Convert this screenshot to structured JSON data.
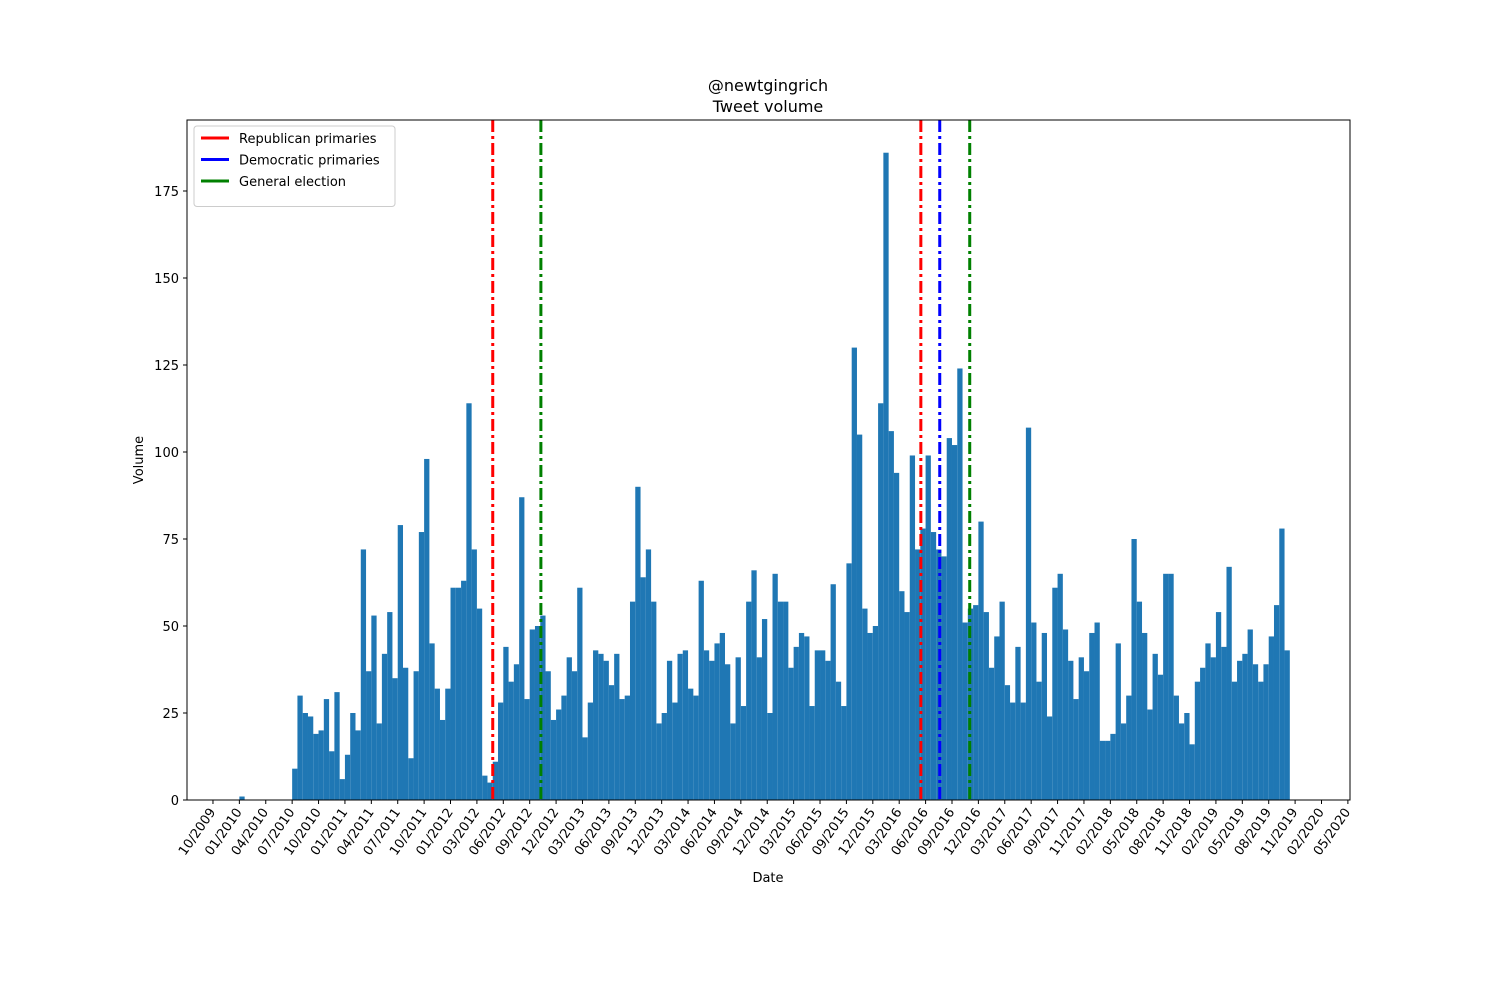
{
  "chart_data": {
    "type": "histogram",
    "title": "@newtgingrich",
    "subtitle": "Tweet volume",
    "x_label": "Date",
    "y_label": "Volume",
    "color": "#1f77b4",
    "bins": [
      2010,
      2010.05,
      2010.1,
      2010.15,
      2010.2,
      2010.25,
      2010.3,
      2010.35,
      2010.4,
      2010.45,
      2010.5,
      2010.55,
      2010.6,
      2010.65,
      2010.7,
      2010.75,
      2010.8,
      2010.85,
      2010.9,
      2010.95,
      2011,
      2011.05,
      2011.1,
      2011.15,
      2011.2,
      2011.25,
      2011.3,
      2011.35,
      2011.4,
      2011.45,
      2011.5,
      2011.55,
      2011.6,
      2011.65,
      2011.7,
      2011.75,
      2011.8,
      2011.85,
      2011.9,
      2011.95,
      2012,
      2012.05,
      2012.1,
      2012.15,
      2012.2,
      2012.25,
      2012.3,
      2012.35,
      2012.4,
      2012.45,
      2012.5,
      2012.55,
      2012.6,
      2012.65,
      2012.7,
      2012.75,
      2012.8,
      2012.85,
      2012.9,
      2012.95,
      2013,
      2013.05,
      2013.1,
      2013.15,
      2013.2,
      2013.25,
      2013.3,
      2013.35,
      2013.4,
      2013.45,
      2013.5,
      2013.55,
      2013.6,
      2013.65,
      2013.7,
      2013.75,
      2013.8,
      2013.85,
      2013.9,
      2013.95,
      2014,
      2014.05,
      2014.1,
      2014.15,
      2014.2,
      2014.25,
      2014.3,
      2014.35,
      2014.4,
      2014.45,
      2014.5,
      2014.55,
      2014.6,
      2014.65,
      2014.7,
      2014.75,
      2014.8,
      2014.85,
      2014.9,
      2014.95,
      2015,
      2015.05,
      2015.1,
      2015.15,
      2015.2,
      2015.25,
      2015.3,
      2015.35,
      2015.4,
      2015.45,
      2015.5,
      2015.55,
      2015.6,
      2015.65,
      2015.7,
      2015.75,
      2015.8,
      2015.85,
      2015.9,
      2015.95,
      2016,
      2016.05,
      2016.1,
      2016.15,
      2016.2,
      2016.25,
      2016.3,
      2016.35,
      2016.4,
      2016.45,
      2016.5,
      2016.55,
      2016.6,
      2016.65,
      2016.7,
      2016.75,
      2016.8,
      2016.85,
      2016.9,
      2016.95,
      2017,
      2017.05,
      2017.1,
      2017.15,
      2017.2,
      2017.25,
      2017.3,
      2017.35,
      2017.4,
      2017.45,
      2017.5,
      2017.55,
      2017.6,
      2017.65,
      2017.7,
      2017.75,
      2017.8,
      2017.85,
      2017.9,
      2017.95,
      2018,
      2018.05,
      2018.1,
      2018.15,
      2018.2,
      2018.25,
      2018.3,
      2018.35,
      2018.4,
      2018.45,
      2018.5,
      2018.55,
      2018.6,
      2018.65,
      2018.7,
      2018.75,
      2018.8,
      2018.85,
      2018.9,
      2018.95,
      2019,
      2019.05,
      2019.1,
      2019.15,
      2019.2,
      2019.25,
      2019.3,
      2019.35,
      2019.4,
      2019.45,
      2019.5,
      2019.55,
      2019.6,
      2019.65,
      2019.7,
      2019.75,
      2019.8,
      2019.85,
      2019.9,
      2019.95
    ],
    "values": [
      1,
      0,
      0,
      0,
      0,
      0,
      0,
      0,
      0,
      0,
      9,
      30,
      25,
      24,
      19,
      20,
      29,
      14,
      31,
      6,
      13,
      25,
      20,
      72,
      37,
      53,
      22,
      42,
      54,
      35,
      79,
      38,
      12,
      37,
      77,
      98,
      45,
      32,
      23,
      32,
      61,
      61,
      63,
      114,
      72,
      55,
      7,
      5,
      11,
      28,
      44,
      34,
      39,
      87,
      29,
      49,
      50,
      53,
      37,
      23,
      26,
      30,
      41,
      37,
      61,
      18,
      28,
      43,
      42,
      40,
      33,
      42,
      29,
      30,
      57,
      90,
      64,
      72,
      57,
      22,
      25,
      40,
      28,
      42,
      43,
      32,
      30,
      63,
      43,
      40,
      45,
      48,
      39,
      22,
      41,
      27,
      57,
      66,
      41,
      52,
      25,
      65,
      57,
      57,
      38,
      44,
      48,
      47,
      27,
      43,
      43,
      40,
      62,
      34,
      27,
      68,
      130,
      105,
      55,
      48,
      50,
      114,
      186,
      106,
      94,
      60,
      54,
      99,
      72,
      78,
      99,
      77,
      72,
      70,
      104,
      102,
      124,
      51,
      55,
      56,
      80,
      54,
      38,
      47,
      57,
      33,
      28,
      44,
      28,
      107,
      51,
      34,
      48,
      24,
      61,
      65,
      49,
      40,
      29,
      41,
      37,
      48,
      51,
      17,
      17,
      19,
      45,
      22,
      30,
      75,
      57,
      48,
      26,
      42,
      36,
      65,
      65,
      30,
      22,
      25,
      16,
      34,
      38,
      45,
      41,
      54,
      44,
      67,
      34,
      40,
      42,
      49,
      39,
      34,
      39,
      47,
      56,
      78,
      43
    ],
    "vlines": [
      {
        "name": "Republican primaries",
        "color": "#ff0000",
        "x": [
          2012.4,
          2016.455
        ]
      },
      {
        "name": "Democratic primaries",
        "color": "#0000ff",
        "x": [
          2016.634
        ]
      },
      {
        "name": "General election",
        "color": "#008000",
        "x": [
          2012.856,
          2016.918
        ]
      }
    ],
    "legend": "upper left",
    "xlim": [
      2009.504,
      2020.52
    ],
    "ylim": [
      0,
      195.4
    ],
    "yticks": [
      0,
      25,
      50,
      75,
      100,
      125,
      150,
      175
    ],
    "xticks": [
      {
        "value": 2009.75,
        "label": "10/2009"
      },
      {
        "value": 2010,
        "label": "01/2010"
      },
      {
        "value": 2010.25,
        "label": "04/2010"
      },
      {
        "value": 2010.5,
        "label": "07/2010"
      },
      {
        "value": 2010.75,
        "label": "10/2010"
      },
      {
        "value": 2011,
        "label": "01/2011"
      },
      {
        "value": 2011.25,
        "label": "04/2011"
      },
      {
        "value": 2011.5,
        "label": "07/2011"
      },
      {
        "value": 2011.75,
        "label": "10/2011"
      },
      {
        "value": 2012,
        "label": "01/2012"
      },
      {
        "value": 2012.25,
        "label": "03/2012"
      },
      {
        "value": 2012.5,
        "label": "06/2012"
      },
      {
        "value": 2012.75,
        "label": "09/2012"
      },
      {
        "value": 2013,
        "label": "12/2012"
      },
      {
        "value": 2013.25,
        "label": "03/2013"
      },
      {
        "value": 2013.5,
        "label": "06/2013"
      },
      {
        "value": 2013.75,
        "label": "09/2013"
      },
      {
        "value": 2014,
        "label": "12/2013"
      },
      {
        "value": 2014.25,
        "label": "03/2014"
      },
      {
        "value": 2014.5,
        "label": "06/2014"
      },
      {
        "value": 2014.75,
        "label": "09/2014"
      },
      {
        "value": 2015,
        "label": "12/2014"
      },
      {
        "value": 2015.25,
        "label": "03/2015"
      },
      {
        "value": 2015.5,
        "label": "06/2015"
      },
      {
        "value": 2015.75,
        "label": "09/2015"
      },
      {
        "value": 2016,
        "label": "12/2015"
      },
      {
        "value": 2016.25,
        "label": "03/2016"
      },
      {
        "value": 2016.5,
        "label": "06/2016"
      },
      {
        "value": 2016.75,
        "label": "09/2016"
      },
      {
        "value": 2017,
        "label": "12/2016"
      },
      {
        "value": 2017.25,
        "label": "03/2017"
      },
      {
        "value": 2017.5,
        "label": "06/2017"
      },
      {
        "value": 2017.75,
        "label": "09/2017"
      },
      {
        "value": 2018,
        "label": "11/2017"
      },
      {
        "value": 2018.25,
        "label": "02/2018"
      },
      {
        "value": 2018.5,
        "label": "05/2018"
      },
      {
        "value": 2018.75,
        "label": "08/2018"
      },
      {
        "value": 2019,
        "label": "11/2018"
      },
      {
        "value": 2019.25,
        "label": "02/2019"
      },
      {
        "value": 2019.5,
        "label": "05/2019"
      },
      {
        "value": 2019.75,
        "label": "08/2019"
      },
      {
        "value": 2020,
        "label": "11/2019"
      },
      {
        "value": 2020.25,
        "label": "02/2020"
      },
      {
        "value": 2020.5,
        "label": "05/2020"
      }
    ]
  }
}
